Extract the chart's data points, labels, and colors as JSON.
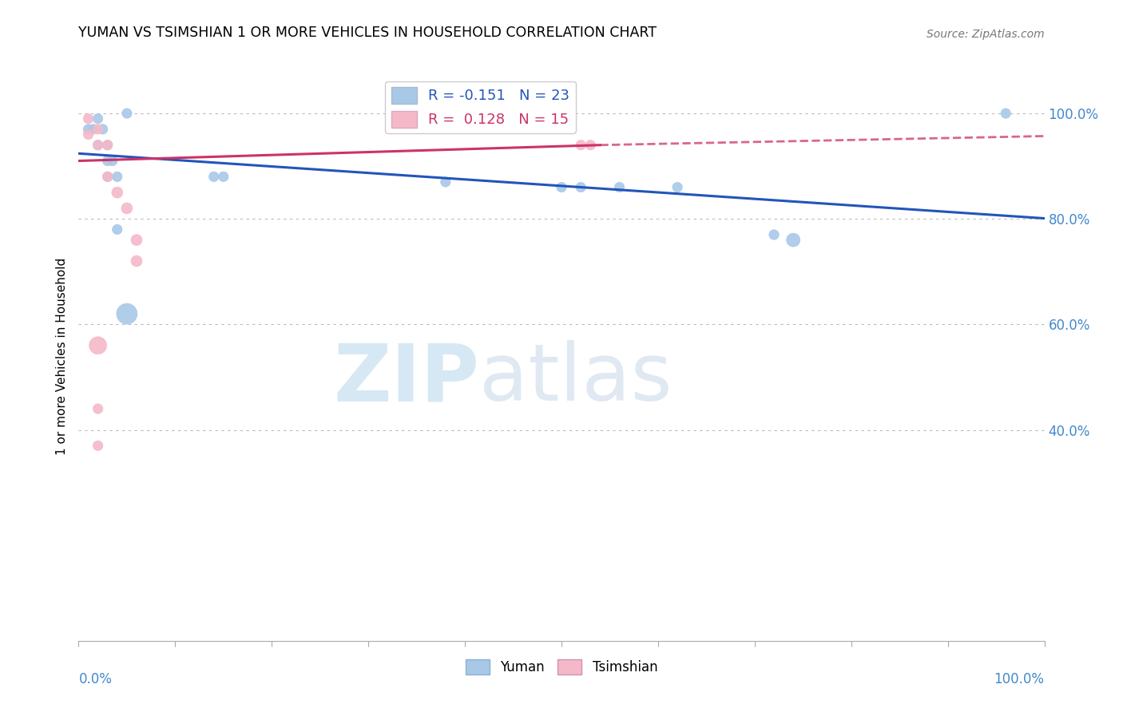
{
  "title": "YUMAN VS TSIMSHIAN 1 OR MORE VEHICLES IN HOUSEHOLD CORRELATION CHART",
  "source_text": "Source: ZipAtlas.com",
  "ylabel": "1 or more Vehicles in Household",
  "watermark_zip": "ZIP",
  "watermark_atlas": "atlas",
  "legend_r_yuman": "-0.151",
  "legend_n_yuman": "23",
  "legend_r_tsimshian": "0.128",
  "legend_n_tsimshian": "15",
  "yuman_color": "#a8c8e8",
  "tsimshian_color": "#f5b8c8",
  "trend_blue": "#2255bb",
  "trend_pink": "#cc3366",
  "xlim": [
    0.0,
    1.0
  ],
  "ylim": [
    0.0,
    1.08
  ],
  "yticks": [
    0.4,
    0.6,
    0.8,
    1.0
  ],
  "ytick_labels": [
    "40.0%",
    "60.0%",
    "80.0%",
    "100.0%"
  ],
  "grid_color": "#bbbbbb",
  "background_color": "#ffffff",
  "yuman_x": [
    0.015,
    0.02,
    0.025,
    0.03,
    0.035,
    0.04,
    0.04,
    0.05,
    0.14,
    0.15,
    0.38,
    0.5,
    0.52,
    0.56,
    0.62,
    0.72,
    0.74,
    0.96,
    0.01,
    0.02,
    0.03,
    0.03,
    0.05
  ],
  "yuman_y": [
    0.97,
    0.99,
    0.97,
    0.94,
    0.91,
    0.88,
    0.78,
    0.62,
    0.88,
    0.88,
    0.87,
    0.86,
    0.86,
    0.86,
    0.86,
    0.77,
    0.76,
    1.0,
    0.97,
    0.94,
    0.91,
    0.88,
    1.0
  ],
  "yuman_sizes": [
    80,
    80,
    80,
    80,
    80,
    80,
    80,
    350,
    80,
    80,
    80,
    80,
    80,
    80,
    80,
    80,
    150,
    80,
    80,
    80,
    80,
    80,
    80
  ],
  "tsimshian_x": [
    0.01,
    0.01,
    0.02,
    0.02,
    0.03,
    0.03,
    0.04,
    0.05,
    0.06,
    0.06,
    0.02,
    0.52,
    0.53,
    0.02,
    0.02
  ],
  "tsimshian_y": [
    0.99,
    0.96,
    0.97,
    0.94,
    0.94,
    0.88,
    0.85,
    0.82,
    0.76,
    0.72,
    0.56,
    0.94,
    0.94,
    0.44,
    0.37
  ],
  "tsimshian_sizes": [
    80,
    80,
    80,
    80,
    80,
    80,
    100,
    100,
    100,
    100,
    250,
    80,
    80,
    80,
    80
  ],
  "trend_yuman_x0": 0.0,
  "trend_yuman_x1": 1.0,
  "trend_yuman_y0": 0.924,
  "trend_yuman_y1": 0.801,
  "trend_tsim_x0": 0.0,
  "trend_tsim_x1": 0.54,
  "trend_tsim_xd0": 0.54,
  "trend_tsim_xd1": 1.0,
  "trend_tsim_y0": 0.91,
  "trend_tsim_y1": 0.94,
  "trend_tsim_yd0": 0.94,
  "trend_tsim_yd1": 0.957
}
